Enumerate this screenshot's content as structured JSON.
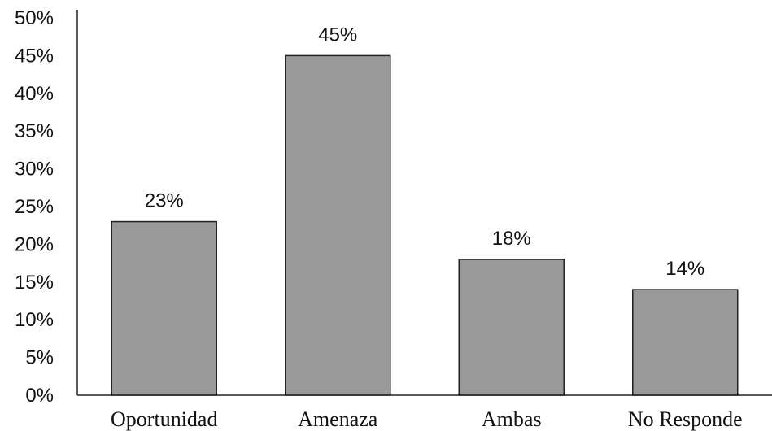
{
  "chart_data": {
    "type": "bar",
    "categories": [
      "Oportunidad",
      "Amenaza",
      "Ambas",
      "No Responde"
    ],
    "values": [
      23,
      45,
      18,
      14
    ],
    "value_labels": [
      "23%",
      "45%",
      "18%",
      "14%"
    ],
    "ylim": [
      0,
      50
    ],
    "yticks": [
      0,
      5,
      10,
      15,
      20,
      25,
      30,
      35,
      40,
      45,
      50
    ],
    "ytick_labels": [
      "0%",
      "5%",
      "10%",
      "15%",
      "20%",
      "25%",
      "30%",
      "35%",
      "40%",
      "45%",
      "50%"
    ],
    "bar_color": "#999999",
    "grid": false,
    "legend": "none"
  }
}
